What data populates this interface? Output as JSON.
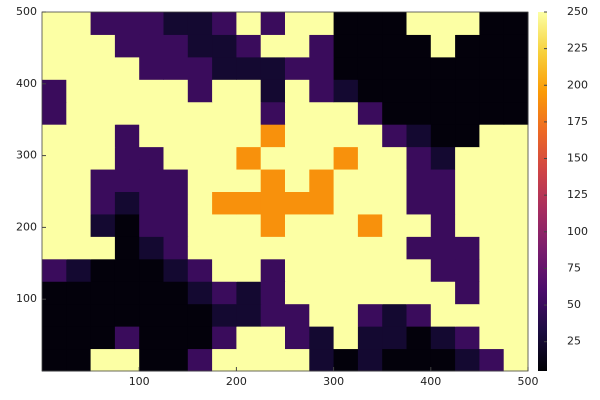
{
  "chart_data": {
    "type": "heatmap",
    "xlim": [
      0,
      500
    ],
    "ylim": [
      0,
      500
    ],
    "xticks": [
      100,
      200,
      300,
      400,
      500
    ],
    "yticks": [
      100,
      200,
      300,
      400,
      500
    ],
    "clim": [
      5,
      250
    ],
    "cticks": [
      25,
      50,
      75,
      100,
      125,
      150,
      175,
      200,
      225,
      250
    ],
    "colormap": [
      "#000004",
      "#1b0c41",
      "#4a0c6b",
      "#781c6d",
      "#a52c60",
      "#cf4446",
      "#ed6925",
      "#fb9b06",
      "#f7d13d",
      "#fcffa4"
    ],
    "z": [
      [
        8,
        8,
        250,
        250,
        8,
        8,
        50,
        250,
        250,
        250,
        250,
        25,
        8,
        25,
        8,
        8,
        8,
        25,
        50,
        250
      ],
      [
        8,
        8,
        8,
        50,
        8,
        8,
        8,
        50,
        250,
        250,
        50,
        25,
        250,
        25,
        25,
        8,
        25,
        50,
        250,
        250
      ],
      [
        8,
        8,
        8,
        8,
        8,
        8,
        8,
        25,
        25,
        50,
        50,
        250,
        250,
        50,
        25,
        50,
        250,
        250,
        250,
        250
      ],
      [
        8,
        8,
        8,
        8,
        8,
        8,
        25,
        50,
        25,
        50,
        250,
        250,
        250,
        250,
        250,
        250,
        250,
        50,
        250,
        250
      ],
      [
        50,
        25,
        8,
        8,
        8,
        25,
        50,
        250,
        250,
        50,
        250,
        250,
        250,
        250,
        250,
        250,
        50,
        50,
        250,
        250
      ],
      [
        250,
        250,
        250,
        8,
        25,
        50,
        250,
        250,
        250,
        250,
        250,
        250,
        250,
        250,
        250,
        50,
        50,
        50,
        250,
        250
      ],
      [
        250,
        250,
        25,
        8,
        50,
        50,
        250,
        250,
        250,
        190,
        250,
        250,
        250,
        190,
        250,
        250,
        50,
        250,
        250,
        250
      ],
      [
        250,
        250,
        50,
        25,
        50,
        50,
        250,
        190,
        190,
        190,
        190,
        190,
        250,
        250,
        250,
        50,
        50,
        250,
        250,
        250
      ],
      [
        250,
        250,
        50,
        50,
        50,
        50,
        250,
        250,
        250,
        190,
        250,
        190,
        250,
        250,
        250,
        50,
        50,
        250,
        250,
        250
      ],
      [
        250,
        250,
        250,
        50,
        50,
        250,
        250,
        250,
        190,
        250,
        250,
        250,
        190,
        250,
        250,
        50,
        25,
        250,
        250,
        250
      ],
      [
        250,
        250,
        250,
        50,
        250,
        250,
        250,
        250,
        250,
        190,
        250,
        250,
        250,
        250,
        50,
        25,
        8,
        8,
        250,
        250
      ],
      [
        50,
        250,
        250,
        250,
        250,
        250,
        250,
        250,
        250,
        50,
        250,
        250,
        250,
        50,
        8,
        8,
        8,
        8,
        8,
        8
      ],
      [
        50,
        250,
        250,
        250,
        250,
        250,
        50,
        250,
        250,
        25,
        250,
        50,
        25,
        8,
        8,
        8,
        8,
        8,
        8,
        8
      ],
      [
        250,
        250,
        250,
        250,
        50,
        50,
        50,
        25,
        25,
        25,
        50,
        50,
        8,
        8,
        8,
        8,
        8,
        8,
        8,
        8
      ],
      [
        250,
        250,
        250,
        50,
        50,
        50,
        25,
        25,
        50,
        250,
        250,
        50,
        8,
        8,
        8,
        8,
        250,
        8,
        8,
        8
      ],
      [
        250,
        250,
        50,
        50,
        50,
        25,
        25,
        50,
        250,
        50,
        250,
        250,
        8,
        8,
        8,
        250,
        250,
        250,
        8,
        8
      ]
    ]
  }
}
